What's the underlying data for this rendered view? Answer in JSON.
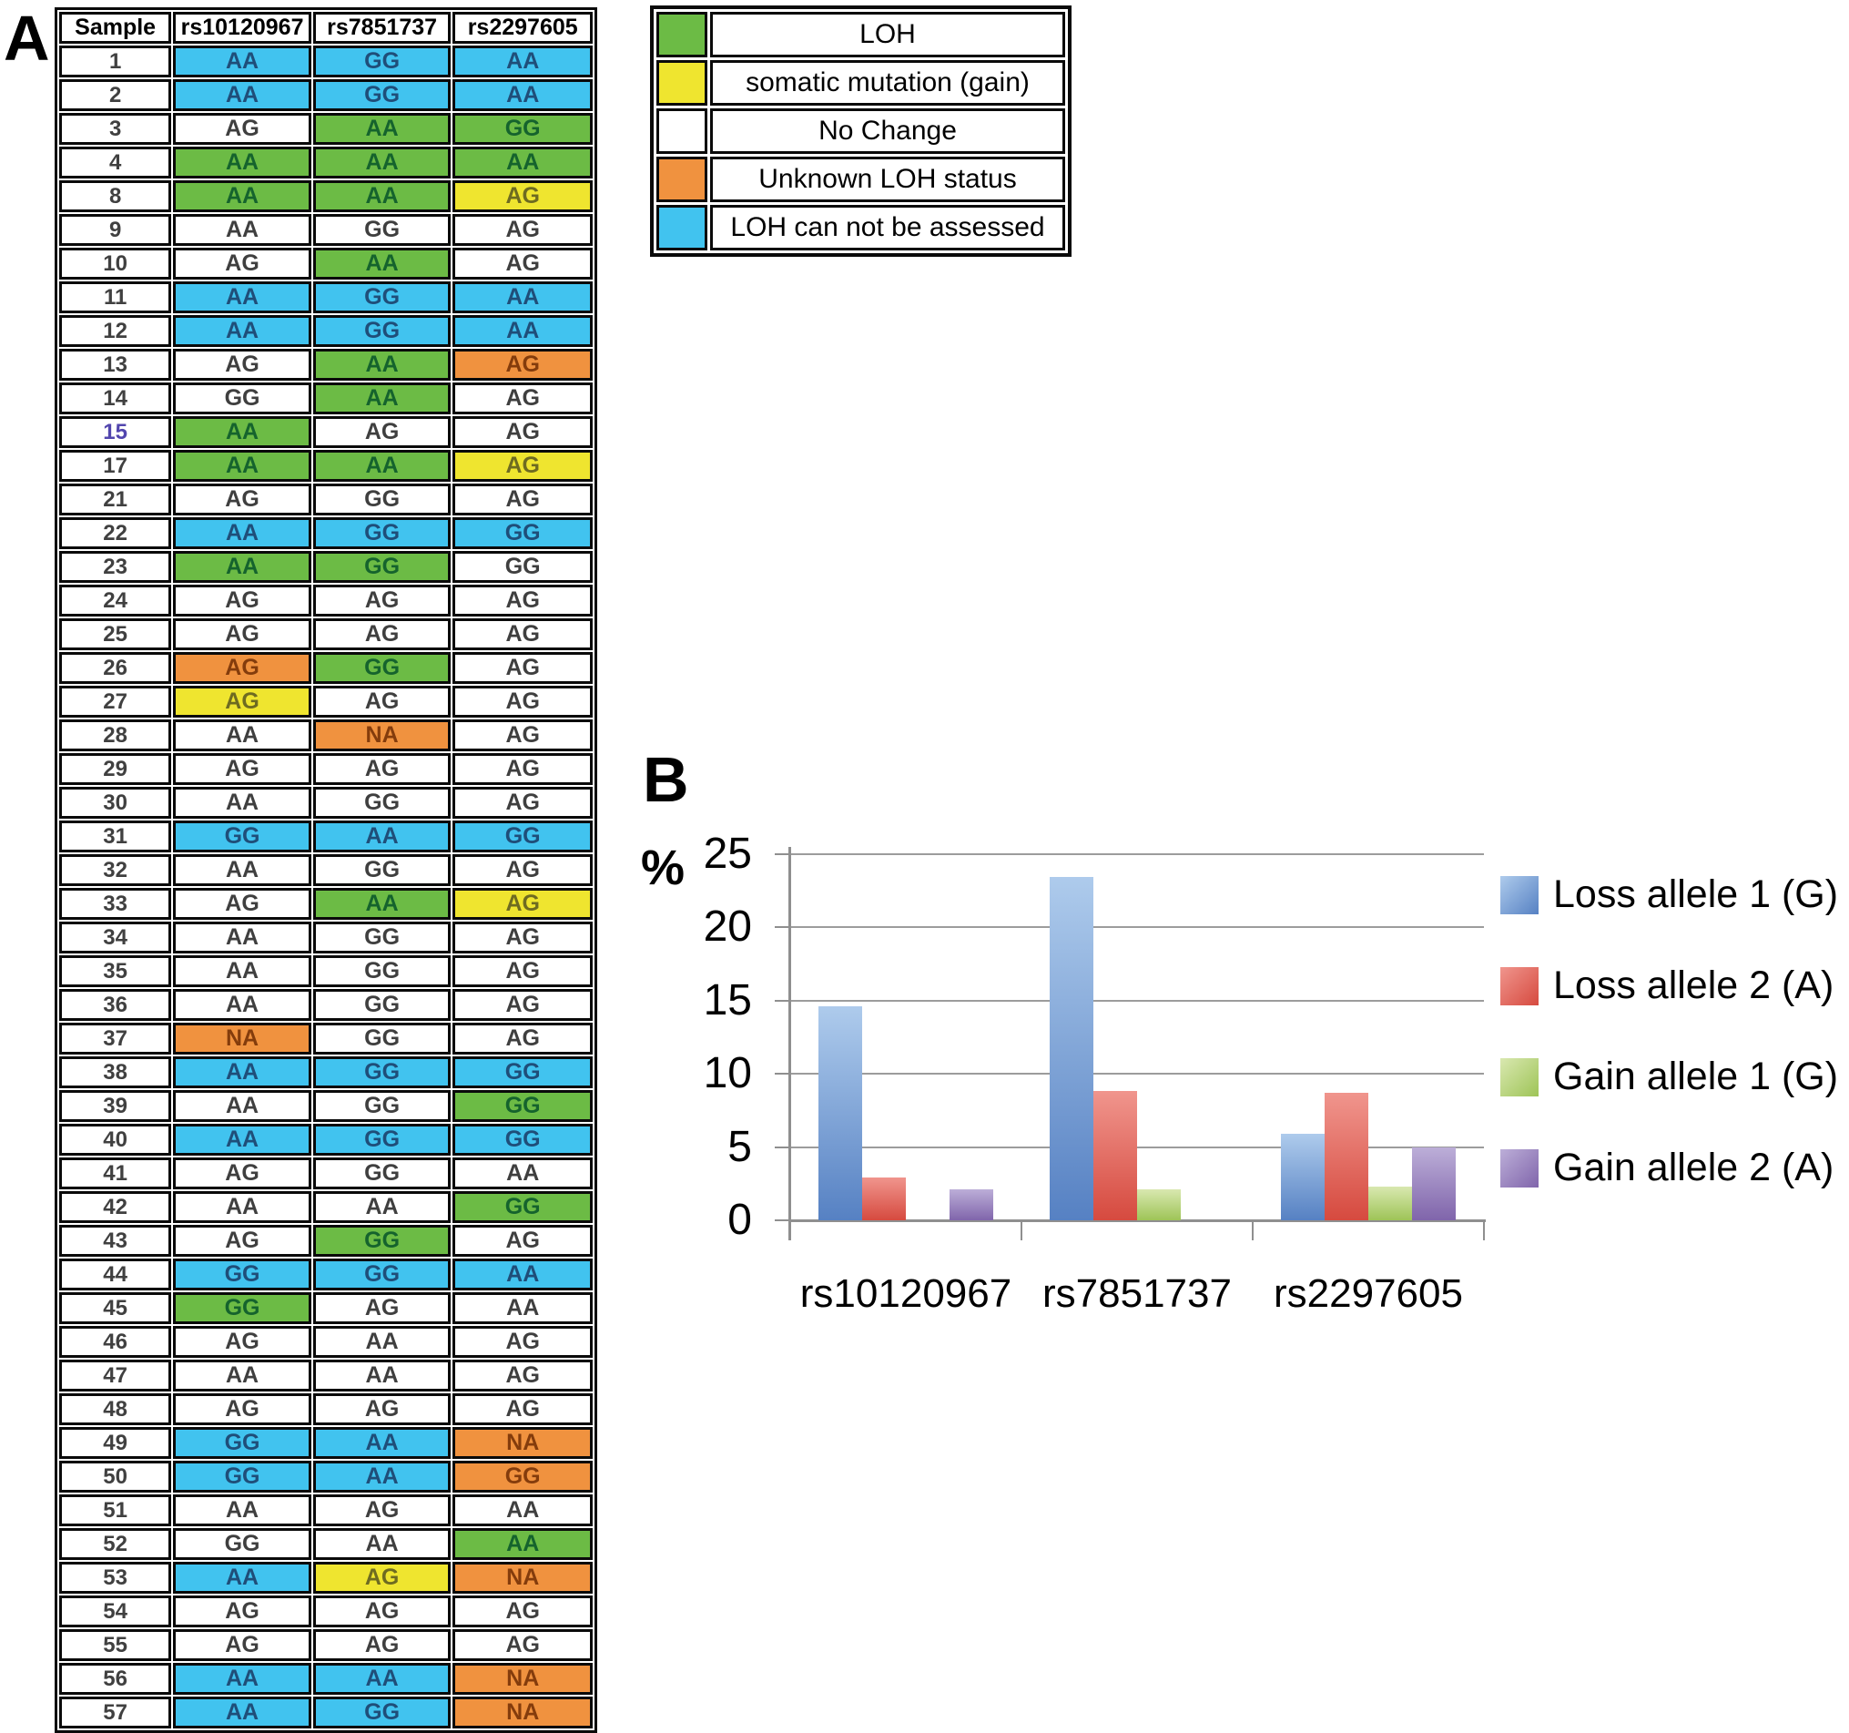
{
  "panel_a": {
    "label": "A",
    "table": {
      "headers": [
        "Sample",
        "rs10120967",
        "rs7851737",
        "rs2297605"
      ],
      "highlighted_sample": "15",
      "highlight_color": "#5246AE",
      "rows": [
        {
          "s": "1",
          "c": [
            [
              "AA",
              "b"
            ],
            [
              "GG",
              "b"
            ],
            [
              "AA",
              "b"
            ]
          ]
        },
        {
          "s": "2",
          "c": [
            [
              "AA",
              "b"
            ],
            [
              "GG",
              "b"
            ],
            [
              "AA",
              "b"
            ]
          ]
        },
        {
          "s": "3",
          "c": [
            [
              "AG",
              "w"
            ],
            [
              "AA",
              "g"
            ],
            [
              "GG",
              "g"
            ]
          ]
        },
        {
          "s": "4",
          "c": [
            [
              "AA",
              "g"
            ],
            [
              "AA",
              "g"
            ],
            [
              "AA",
              "g"
            ]
          ]
        },
        {
          "s": "8",
          "c": [
            [
              "AA",
              "g"
            ],
            [
              "AA",
              "g"
            ],
            [
              "AG",
              "y"
            ]
          ]
        },
        {
          "s": "9",
          "c": [
            [
              "AA",
              "w"
            ],
            [
              "GG",
              "w"
            ],
            [
              "AG",
              "w"
            ]
          ]
        },
        {
          "s": "10",
          "c": [
            [
              "AG",
              "w"
            ],
            [
              "AA",
              "g"
            ],
            [
              "AG",
              "w"
            ]
          ]
        },
        {
          "s": "11",
          "c": [
            [
              "AA",
              "b"
            ],
            [
              "GG",
              "b"
            ],
            [
              "AA",
              "b"
            ]
          ]
        },
        {
          "s": "12",
          "c": [
            [
              "AA",
              "b"
            ],
            [
              "GG",
              "b"
            ],
            [
              "AA",
              "b"
            ]
          ]
        },
        {
          "s": "13",
          "c": [
            [
              "AG",
              "w"
            ],
            [
              "AA",
              "g"
            ],
            [
              "AG",
              "o"
            ]
          ]
        },
        {
          "s": "14",
          "c": [
            [
              "GG",
              "w"
            ],
            [
              "AA",
              "g"
            ],
            [
              "AG",
              "w"
            ]
          ]
        },
        {
          "s": "15",
          "c": [
            [
              "AA",
              "g"
            ],
            [
              "AG",
              "w"
            ],
            [
              "AG",
              "w"
            ]
          ]
        },
        {
          "s": "17",
          "c": [
            [
              "AA",
              "g"
            ],
            [
              "AA",
              "g"
            ],
            [
              "AG",
              "y"
            ]
          ]
        },
        {
          "s": "21",
          "c": [
            [
              "AG",
              "w"
            ],
            [
              "GG",
              "w"
            ],
            [
              "AG",
              "w"
            ]
          ]
        },
        {
          "s": "22",
          "c": [
            [
              "AA",
              "b"
            ],
            [
              "GG",
              "b"
            ],
            [
              "GG",
              "b"
            ]
          ]
        },
        {
          "s": "23",
          "c": [
            [
              "AA",
              "g"
            ],
            [
              "GG",
              "g"
            ],
            [
              "GG",
              "w"
            ]
          ]
        },
        {
          "s": "24",
          "c": [
            [
              "AG",
              "w"
            ],
            [
              "AG",
              "w"
            ],
            [
              "AG",
              "w"
            ]
          ]
        },
        {
          "s": "25",
          "c": [
            [
              "AG",
              "w"
            ],
            [
              "AG",
              "w"
            ],
            [
              "AG",
              "w"
            ]
          ]
        },
        {
          "s": "26",
          "c": [
            [
              "AG",
              "o"
            ],
            [
              "GG",
              "g"
            ],
            [
              "AG",
              "w"
            ]
          ]
        },
        {
          "s": "27",
          "c": [
            [
              "AG",
              "y"
            ],
            [
              "AG",
              "w"
            ],
            [
              "AG",
              "w"
            ]
          ]
        },
        {
          "s": "28",
          "c": [
            [
              "AA",
              "w"
            ],
            [
              "NA",
              "o"
            ],
            [
              "AG",
              "w"
            ]
          ]
        },
        {
          "s": "29",
          "c": [
            [
              "AG",
              "w"
            ],
            [
              "AG",
              "w"
            ],
            [
              "AG",
              "w"
            ]
          ]
        },
        {
          "s": "30",
          "c": [
            [
              "AA",
              "w"
            ],
            [
              "GG",
              "w"
            ],
            [
              "AG",
              "w"
            ]
          ]
        },
        {
          "s": "31",
          "c": [
            [
              "GG",
              "b"
            ],
            [
              "AA",
              "b"
            ],
            [
              "GG",
              "b"
            ]
          ]
        },
        {
          "s": "32",
          "c": [
            [
              "AA",
              "w"
            ],
            [
              "GG",
              "w"
            ],
            [
              "AG",
              "w"
            ]
          ]
        },
        {
          "s": "33",
          "c": [
            [
              "AG",
              "w"
            ],
            [
              "AA",
              "g"
            ],
            [
              "AG",
              "y"
            ]
          ]
        },
        {
          "s": "34",
          "c": [
            [
              "AA",
              "w"
            ],
            [
              "GG",
              "w"
            ],
            [
              "AG",
              "w"
            ]
          ]
        },
        {
          "s": "35",
          "c": [
            [
              "AA",
              "w"
            ],
            [
              "GG",
              "w"
            ],
            [
              "AG",
              "w"
            ]
          ]
        },
        {
          "s": "36",
          "c": [
            [
              "AA",
              "w"
            ],
            [
              "GG",
              "w"
            ],
            [
              "AG",
              "w"
            ]
          ]
        },
        {
          "s": "37",
          "c": [
            [
              "NA",
              "o"
            ],
            [
              "GG",
              "w"
            ],
            [
              "AG",
              "w"
            ]
          ]
        },
        {
          "s": "38",
          "c": [
            [
              "AA",
              "b"
            ],
            [
              "GG",
              "b"
            ],
            [
              "GG",
              "b"
            ]
          ]
        },
        {
          "s": "39",
          "c": [
            [
              "AA",
              "w"
            ],
            [
              "GG",
              "w"
            ],
            [
              "GG",
              "g"
            ]
          ]
        },
        {
          "s": "40",
          "c": [
            [
              "AA",
              "b"
            ],
            [
              "GG",
              "b"
            ],
            [
              "GG",
              "b"
            ]
          ]
        },
        {
          "s": "41",
          "c": [
            [
              "AG",
              "w"
            ],
            [
              "GG",
              "w"
            ],
            [
              "AA",
              "w"
            ]
          ]
        },
        {
          "s": "42",
          "c": [
            [
              "AA",
              "w"
            ],
            [
              "AA",
              "w"
            ],
            [
              "GG",
              "g"
            ]
          ]
        },
        {
          "s": "43",
          "c": [
            [
              "AG",
              "w"
            ],
            [
              "GG",
              "g"
            ],
            [
              "AG",
              "w"
            ]
          ]
        },
        {
          "s": "44",
          "c": [
            [
              "GG",
              "b"
            ],
            [
              "GG",
              "b"
            ],
            [
              "AA",
              "b"
            ]
          ]
        },
        {
          "s": "45",
          "c": [
            [
              "GG",
              "g"
            ],
            [
              "AG",
              "w"
            ],
            [
              "AA",
              "w"
            ]
          ]
        },
        {
          "s": "46",
          "c": [
            [
              "AG",
              "w"
            ],
            [
              "AA",
              "w"
            ],
            [
              "AG",
              "w"
            ]
          ]
        },
        {
          "s": "47",
          "c": [
            [
              "AA",
              "w"
            ],
            [
              "AA",
              "w"
            ],
            [
              "AG",
              "w"
            ]
          ]
        },
        {
          "s": "48",
          "c": [
            [
              "AG",
              "w"
            ],
            [
              "AG",
              "w"
            ],
            [
              "AG",
              "w"
            ]
          ]
        },
        {
          "s": "49",
          "c": [
            [
              "GG",
              "b"
            ],
            [
              "AA",
              "b"
            ],
            [
              "NA",
              "o"
            ]
          ]
        },
        {
          "s": "50",
          "c": [
            [
              "GG",
              "b"
            ],
            [
              "AA",
              "b"
            ],
            [
              "GG",
              "o"
            ]
          ]
        },
        {
          "s": "51",
          "c": [
            [
              "AA",
              "w"
            ],
            [
              "AG",
              "w"
            ],
            [
              "AA",
              "w"
            ]
          ]
        },
        {
          "s": "52",
          "c": [
            [
              "GG",
              "w"
            ],
            [
              "AA",
              "w"
            ],
            [
              "AA",
              "g"
            ]
          ]
        },
        {
          "s": "53",
          "c": [
            [
              "AA",
              "b"
            ],
            [
              "AG",
              "y"
            ],
            [
              "NA",
              "o"
            ]
          ]
        },
        {
          "s": "54",
          "c": [
            [
              "AG",
              "w"
            ],
            [
              "AG",
              "w"
            ],
            [
              "AG",
              "w"
            ]
          ]
        },
        {
          "s": "55",
          "c": [
            [
              "AG",
              "w"
            ],
            [
              "AG",
              "w"
            ],
            [
              "AG",
              "w"
            ]
          ]
        },
        {
          "s": "56",
          "c": [
            [
              "AA",
              "b"
            ],
            [
              "AA",
              "b"
            ],
            [
              "NA",
              "o"
            ]
          ]
        },
        {
          "s": "57",
          "c": [
            [
              "AA",
              "b"
            ],
            [
              "GG",
              "b"
            ],
            [
              "NA",
              "o"
            ]
          ]
        }
      ]
    },
    "status_colors": {
      "g": {
        "bg": "#6CBB45",
        "fg": "#15632D"
      },
      "y": {
        "bg": "#EFE52F",
        "fg": "#6E6B21"
      },
      "w": {
        "bg": "#FFFFFF",
        "fg": "#3F3F3F"
      },
      "o": {
        "bg": "#F0923F",
        "fg": "#843C0C"
      },
      "b": {
        "bg": "#41C3EF",
        "fg": "#1F4E79"
      }
    },
    "legend": {
      "items": [
        {
          "label": "LOH",
          "status": "g"
        },
        {
          "label": "somatic mutation (gain)",
          "status": "y"
        },
        {
          "label": "No Change",
          "status": "w"
        },
        {
          "label": "Unknown LOH status",
          "status": "o"
        },
        {
          "label": "LOH can not be assessed",
          "status": "b"
        }
      ]
    }
  },
  "panel_b": {
    "label": "B"
  },
  "chart_data": {
    "type": "bar",
    "title": "",
    "ylabel": "%",
    "xlabel": "",
    "categories": [
      "rs10120967",
      "rs7851737",
      "rs2297605"
    ],
    "series": [
      {
        "name": "Loss allele 1 (G)",
        "color": "#6D9CD4",
        "gradient": [
          "#AECBEC",
          "#5681C3"
        ],
        "values": [
          14.6,
          23.4,
          5.9
        ]
      },
      {
        "name": "Loss allele 2 (A)",
        "color": "#DD564A",
        "gradient": [
          "#F0958D",
          "#D64A3F"
        ],
        "values": [
          2.9,
          8.8,
          8.7
        ]
      },
      {
        "name": "Gain allele 1 (G)",
        "color": "#A9CE62",
        "gradient": [
          "#D9E8B0",
          "#9EC457"
        ],
        "values": [
          0,
          2.1,
          2.3
        ]
      },
      {
        "name": "Gain allele 2 (A)",
        "color": "#8E77B5",
        "gradient": [
          "#BCAED8",
          "#8065AB"
        ],
        "values": [
          2.1,
          0,
          5.0
        ]
      }
    ],
    "ylim": [
      0,
      25
    ],
    "yticks": [
      0,
      5,
      10,
      15,
      20,
      25
    ],
    "grid": true,
    "legend_position": "right"
  }
}
